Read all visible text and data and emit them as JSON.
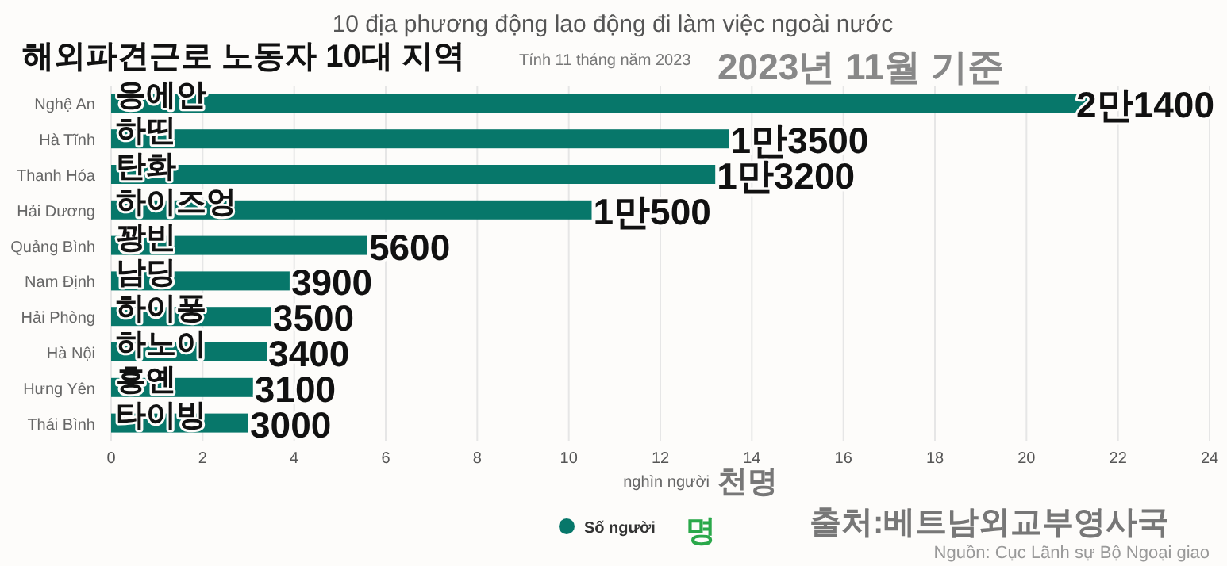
{
  "chart_data": {
    "type": "bar",
    "orientation": "horizontal",
    "title": "10 địa phương động lao động đi làm việc ngoài nước",
    "subtitle": "Tính 11 tháng năm 2023",
    "xlabel": "nghìn người",
    "categories": [
      "Nghệ An",
      "Hà Tĩnh",
      "Thanh Hóa",
      "Hải Dương",
      "Quảng Bình",
      "Nam Định",
      "Hải Phòng",
      "Hà Nội",
      "Hưng Yên",
      "Thái Bình"
    ],
    "series": [
      {
        "name": "Số người",
        "color": "#07776a",
        "values": [
          21.4,
          13.5,
          13.2,
          10.5,
          5.6,
          3.9,
          3.5,
          3.4,
          3.1,
          3.0
        ]
      }
    ],
    "xlim": [
      0,
      24
    ],
    "xticks": [
      0,
      2,
      4,
      6,
      8,
      10,
      12,
      14,
      16,
      18,
      20,
      22,
      24
    ],
    "grid": "x",
    "legend": "bottom",
    "annotations": [
      "해외파견근로 노동자 10대 지역",
      "2023년 11월 기준",
      "천명",
      "명",
      "출처:베트남외교부영사국",
      "Nguồn: Cục Lãnh sự Bộ Ngoại giao",
      {
        "text": "응에안",
        "y": "Nghệ An"
      },
      {
        "text": "하띤",
        "y": "Hà Tĩnh"
      },
      {
        "text": "탄화",
        "y": "Thanh Hóa"
      },
      {
        "text": "하이즈엉",
        "y": "Hải Dương"
      },
      {
        "text": "꽝빈",
        "y": "Quảng Bình"
      },
      {
        "text": "남딩",
        "y": "Nam Định"
      },
      {
        "text": "하이퐁",
        "y": "Hải Phòng"
      },
      {
        "text": "하노이",
        "y": "Hà Nội"
      },
      {
        "text": "흥옌",
        "y": "Hưng Yên"
      },
      {
        "text": "타이빙",
        "y": "Thái Bình"
      },
      {
        "text": "2만1400",
        "x": 21.4,
        "y": "Nghệ An"
      },
      {
        "text": "1만3500",
        "x": 13.5,
        "y": "Hà Tĩnh"
      },
      {
        "text": "1만3200",
        "x": 13.2,
        "y": "Thanh Hóa"
      },
      {
        "text": "1만500",
        "x": 10.5,
        "y": "Hải Dương"
      },
      {
        "text": "5600",
        "x": 5.6,
        "y": "Quảng Bình"
      },
      {
        "text": "3900",
        "x": 3.9,
        "y": "Nam Định"
      },
      {
        "text": "3500",
        "x": 3.5,
        "y": "Hải Phòng"
      },
      {
        "text": "3400",
        "x": 3.4,
        "y": "Hà Nội"
      },
      {
        "text": "3100",
        "x": 3.1,
        "y": "Hưng Yên"
      },
      {
        "text": "3000",
        "x": 3.0,
        "y": "Thái Bình"
      }
    ]
  }
}
